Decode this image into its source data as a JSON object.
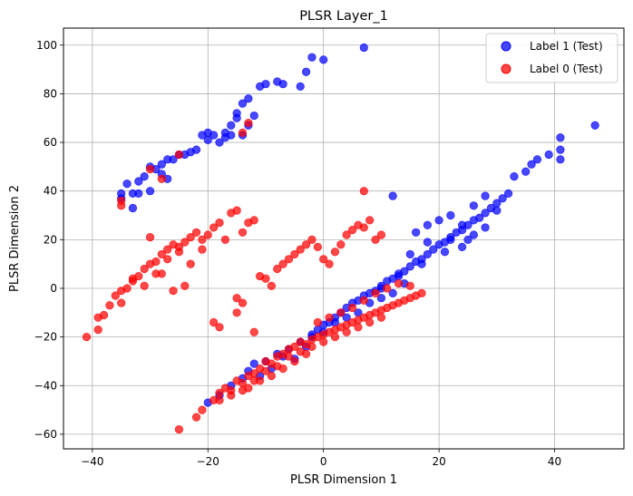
{
  "chart_data": {
    "type": "scatter",
    "title": "PLSR Layer_1",
    "xlabel": "PLSR Dimension 1",
    "ylabel": "PLSR Dimension 2",
    "xlim": [
      -45,
      52
    ],
    "ylim": [
      -66,
      107
    ],
    "xticks": [
      -40,
      -20,
      0,
      20,
      40
    ],
    "yticks": [
      -60,
      -40,
      -20,
      0,
      20,
      40,
      60,
      80,
      100
    ],
    "grid": true,
    "legend_position": "top-right",
    "series": [
      {
        "name": "Label 1 (Test)",
        "color": "#0000ff",
        "points": [
          [
            -35,
            37
          ],
          [
            -35,
            39
          ],
          [
            -34,
            43
          ],
          [
            -33,
            39
          ],
          [
            -33,
            33
          ],
          [
            -32,
            44
          ],
          [
            -32,
            39
          ],
          [
            -31,
            46
          ],
          [
            -30,
            40
          ],
          [
            -30,
            50
          ],
          [
            -29,
            49
          ],
          [
            -28,
            47
          ],
          [
            -28,
            51
          ],
          [
            -27,
            53
          ],
          [
            -27,
            45
          ],
          [
            -26,
            53
          ],
          [
            -25,
            55
          ],
          [
            -24,
            55
          ],
          [
            -23,
            56
          ],
          [
            -22,
            57
          ],
          [
            -21,
            63
          ],
          [
            -20,
            64
          ],
          [
            -20,
            61
          ],
          [
            -19,
            63
          ],
          [
            -18,
            60
          ],
          [
            -17,
            62
          ],
          [
            -17,
            64
          ],
          [
            -16,
            63
          ],
          [
            -16,
            67
          ],
          [
            -15,
            70
          ],
          [
            -15,
            72
          ],
          [
            -14,
            76
          ],
          [
            -14,
            63
          ],
          [
            -13,
            78
          ],
          [
            -13,
            67
          ],
          [
            -12,
            71
          ],
          [
            -11,
            83
          ],
          [
            -10,
            84
          ],
          [
            -8,
            85
          ],
          [
            -7,
            84
          ],
          [
            -4,
            83
          ],
          [
            -3,
            89
          ],
          [
            -2,
            95
          ],
          [
            0,
            94
          ],
          [
            7,
            99
          ],
          [
            -20,
            -47
          ],
          [
            -18,
            -44
          ],
          [
            -16,
            -40
          ],
          [
            -14,
            -37
          ],
          [
            -13,
            -34
          ],
          [
            -12,
            -31
          ],
          [
            -11,
            -36
          ],
          [
            -10,
            -30
          ],
          [
            -9,
            -33
          ],
          [
            -8,
            -27
          ],
          [
            -7,
            -28
          ],
          [
            -6,
            -25
          ],
          [
            -5,
            -29
          ],
          [
            -4,
            -22
          ],
          [
            -3,
            -24
          ],
          [
            -2,
            -19
          ],
          [
            -1,
            -17
          ],
          [
            0,
            -15
          ],
          [
            1,
            -14
          ],
          [
            2,
            -12
          ],
          [
            3,
            -10
          ],
          [
            4,
            -8
          ],
          [
            5,
            -6
          ],
          [
            6,
            -5
          ],
          [
            7,
            -3
          ],
          [
            8,
            -2
          ],
          [
            9,
            -1
          ],
          [
            10,
            1
          ],
          [
            11,
            3
          ],
          [
            12,
            4
          ],
          [
            13,
            6
          ],
          [
            14,
            7
          ],
          [
            15,
            9
          ],
          [
            16,
            11
          ],
          [
            17,
            12
          ],
          [
            18,
            14
          ],
          [
            19,
            16
          ],
          [
            20,
            18
          ],
          [
            21,
            19
          ],
          [
            22,
            21
          ],
          [
            23,
            23
          ],
          [
            24,
            24
          ],
          [
            25,
            26
          ],
          [
            26,
            28
          ],
          [
            27,
            29
          ],
          [
            28,
            31
          ],
          [
            29,
            33
          ],
          [
            30,
            35
          ],
          [
            31,
            37
          ],
          [
            32,
            39
          ],
          [
            16,
            23
          ],
          [
            18,
            26
          ],
          [
            20,
            28
          ],
          [
            22,
            30
          ],
          [
            24,
            26
          ],
          [
            26,
            34
          ],
          [
            28,
            38
          ],
          [
            30,
            32
          ],
          [
            33,
            46
          ],
          [
            35,
            48
          ],
          [
            36,
            51
          ],
          [
            37,
            53
          ],
          [
            39,
            55
          ],
          [
            41,
            53
          ],
          [
            41,
            57
          ],
          [
            41,
            62
          ],
          [
            47,
            67
          ],
          [
            12,
            38
          ],
          [
            15,
            14
          ],
          [
            18,
            19
          ],
          [
            22,
            20
          ],
          [
            24,
            17
          ],
          [
            26,
            22
          ],
          [
            28,
            25
          ],
          [
            10,
            0
          ],
          [
            12,
            -2
          ],
          [
            14,
            2
          ],
          [
            6,
            -10
          ],
          [
            4,
            -12
          ],
          [
            2,
            -14
          ],
          [
            0,
            -18
          ],
          [
            -2,
            -20
          ],
          [
            8,
            -6
          ],
          [
            10,
            -4
          ],
          [
            13,
            5
          ],
          [
            17,
            10
          ],
          [
            21,
            15
          ],
          [
            25,
            20
          ]
        ]
      },
      {
        "name": "Label 0 (Test)",
        "color": "#ff0000",
        "points": [
          [
            -41,
            -20
          ],
          [
            -39,
            -17
          ],
          [
            -39,
            -12
          ],
          [
            -38,
            -11
          ],
          [
            -37,
            -7
          ],
          [
            -36,
            -3
          ],
          [
            -35,
            -1
          ],
          [
            -34,
            0
          ],
          [
            -33,
            3
          ],
          [
            -32,
            5
          ],
          [
            -31,
            8
          ],
          [
            -30,
            10
          ],
          [
            -29,
            11
          ],
          [
            -28,
            14
          ],
          [
            -27,
            16
          ],
          [
            -26,
            18
          ],
          [
            -25,
            17
          ],
          [
            -24,
            19
          ],
          [
            -23,
            21
          ],
          [
            -22,
            23
          ],
          [
            -21,
            20
          ],
          [
            -20,
            22
          ],
          [
            -19,
            25
          ],
          [
            -18,
            27
          ],
          [
            -17,
            20
          ],
          [
            -16,
            31
          ],
          [
            -15,
            32
          ],
          [
            -14,
            23
          ],
          [
            -13,
            27
          ],
          [
            -12,
            28
          ],
          [
            -11,
            5
          ],
          [
            -10,
            4
          ],
          [
            -9,
            1
          ],
          [
            -8,
            8
          ],
          [
            -7,
            10
          ],
          [
            -6,
            12
          ],
          [
            -5,
            14
          ],
          [
            -4,
            16
          ],
          [
            -3,
            18
          ],
          [
            -2,
            20
          ],
          [
            -1,
            17
          ],
          [
            0,
            12
          ],
          [
            1,
            10
          ],
          [
            2,
            15
          ],
          [
            3,
            18
          ],
          [
            4,
            22
          ],
          [
            5,
            24
          ],
          [
            6,
            26
          ],
          [
            7,
            25
          ],
          [
            8,
            28
          ],
          [
            9,
            20
          ],
          [
            10,
            22
          ],
          [
            -30,
            21
          ],
          [
            -28,
            6
          ],
          [
            -26,
            -1
          ],
          [
            -24,
            1
          ],
          [
            -29,
            6
          ],
          [
            -35,
            -6
          ],
          [
            -33,
            4
          ],
          [
            -31,
            1
          ],
          [
            -27,
            12
          ],
          [
            -25,
            15
          ],
          [
            -23,
            10
          ],
          [
            -21,
            16
          ],
          [
            -15,
            -4
          ],
          [
            -15,
            -10
          ],
          [
            -14,
            -6
          ],
          [
            -12,
            -18
          ],
          [
            -19,
            -14
          ],
          [
            -18,
            -16
          ],
          [
            -35,
            34
          ],
          [
            -35,
            36
          ],
          [
            -30,
            49
          ],
          [
            -28,
            45
          ],
          [
            -25,
            55
          ],
          [
            -14,
            64
          ],
          [
            -13,
            68
          ],
          [
            7,
            40
          ],
          [
            -25,
            -58
          ],
          [
            -22,
            -53
          ],
          [
            -21,
            -50
          ],
          [
            -19,
            -46
          ],
          [
            -18,
            -43
          ],
          [
            -17,
            -41
          ],
          [
            -16,
            -42
          ],
          [
            -15,
            -38
          ],
          [
            -14,
            -39
          ],
          [
            -13,
            -36
          ],
          [
            -12,
            -35
          ],
          [
            -11,
            -33
          ],
          [
            -10,
            -30
          ],
          [
            -9,
            -31
          ],
          [
            -8,
            -28
          ],
          [
            -7,
            -27
          ],
          [
            -6,
            -25
          ],
          [
            -5,
            -24
          ],
          [
            -4,
            -22
          ],
          [
            -3,
            -23
          ],
          [
            -2,
            -21
          ],
          [
            -1,
            -20
          ],
          [
            0,
            -19
          ],
          [
            1,
            -18
          ],
          [
            2,
            -17
          ],
          [
            3,
            -16
          ],
          [
            4,
            -15
          ],
          [
            5,
            -14
          ],
          [
            6,
            -13
          ],
          [
            7,
            -12
          ],
          [
            8,
            -11
          ],
          [
            9,
            -10
          ],
          [
            10,
            -9
          ],
          [
            11,
            -8
          ],
          [
            12,
            -7
          ],
          [
            13,
            -6
          ],
          [
            14,
            -5
          ],
          [
            15,
            -4
          ],
          [
            16,
            -3
          ],
          [
            17,
            -2
          ],
          [
            -18,
            -46
          ],
          [
            -16,
            -44
          ],
          [
            -14,
            -42
          ],
          [
            -12,
            -38
          ],
          [
            -10,
            -34
          ],
          [
            -8,
            -32
          ],
          [
            -6,
            -28
          ],
          [
            -4,
            -26
          ],
          [
            -2,
            -24
          ],
          [
            0,
            -22
          ],
          [
            2,
            -20
          ],
          [
            4,
            -18
          ],
          [
            6,
            -16
          ],
          [
            8,
            -14
          ],
          [
            10,
            -12
          ],
          [
            -1,
            -14
          ],
          [
            1,
            -12
          ],
          [
            3,
            -10
          ],
          [
            5,
            -8
          ],
          [
            7,
            -5
          ],
          [
            9,
            -2
          ],
          [
            11,
            0
          ],
          [
            13,
            2
          ],
          [
            15,
            1
          ],
          [
            -3,
            -27
          ],
          [
            -5,
            -30
          ],
          [
            -7,
            -33
          ],
          [
            -9,
            -36
          ],
          [
            -11,
            -38
          ],
          [
            -13,
            -41
          ]
        ]
      }
    ]
  }
}
